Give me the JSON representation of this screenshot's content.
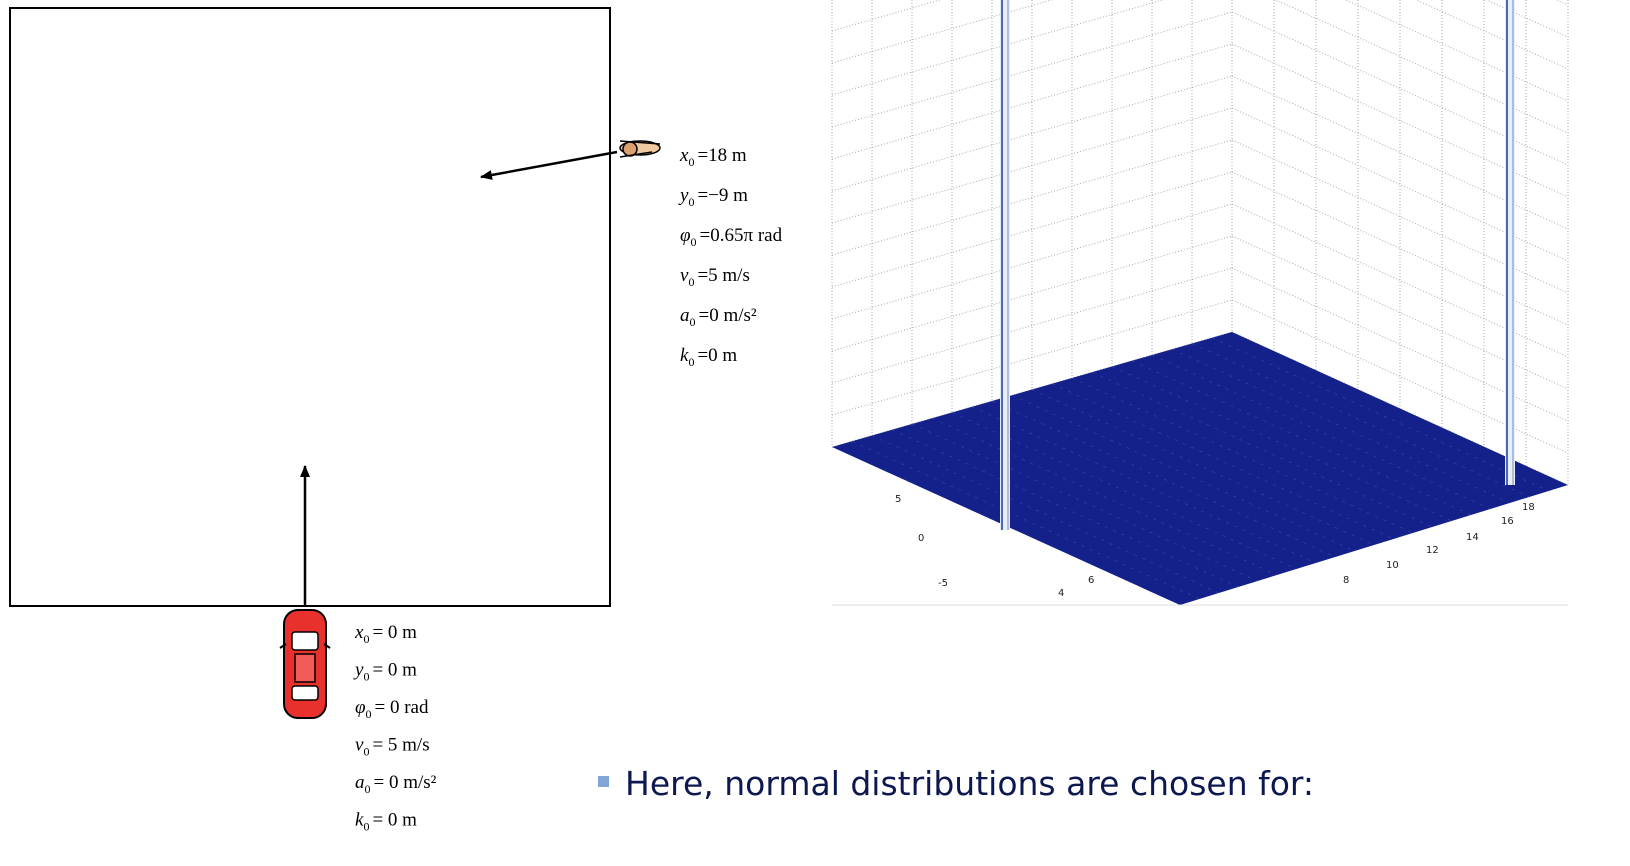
{
  "pedestrian": {
    "params": [
      {
        "sym": "x",
        "sub": "0",
        "rhs": "=18 m"
      },
      {
        "sym": "y",
        "sub": "0",
        "rhs": "=−9 m"
      },
      {
        "sym": "φ",
        "sub": "0",
        "rhs": "=0.65π rad"
      },
      {
        "sym": "v",
        "sub": "0",
        "rhs": "=5 m/s"
      },
      {
        "sym": "a",
        "sub": "0",
        "rhs": "=0 m/s²"
      },
      {
        "sym": "k",
        "sub": "0",
        "rhs": "=0 m"
      }
    ]
  },
  "car": {
    "params": [
      {
        "sym": "x",
        "sub": "0",
        "rhs": "= 0 m"
      },
      {
        "sym": "y",
        "sub": "0",
        "rhs": "= 0 m"
      },
      {
        "sym": "φ",
        "sub": "0",
        "rhs": "= 0 rad"
      },
      {
        "sym": "v",
        "sub": "0",
        "rhs": "= 5 m/s"
      },
      {
        "sym": "a",
        "sub": "0",
        "rhs": "= 0 m/s²"
      },
      {
        "sym": "k",
        "sub": "0",
        "rhs": "= 0 m"
      }
    ]
  },
  "plot": {
    "axis_a_ticks": [
      "5",
      "0",
      "-5"
    ],
    "axis_b_ticks": [
      "4",
      "6",
      "8",
      "10",
      "12",
      "14",
      "16",
      "18"
    ]
  },
  "bullet": {
    "text": "Here, normal distributions are chosen for:"
  }
}
